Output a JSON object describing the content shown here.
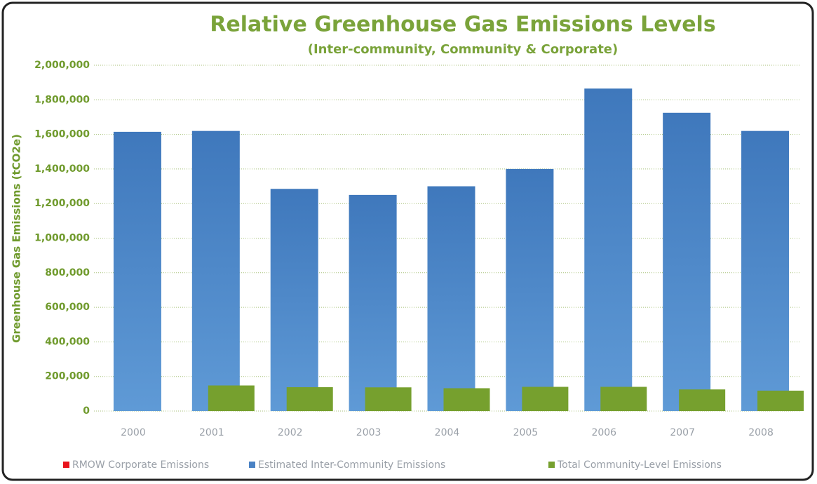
{
  "chart_data": {
    "type": "bar",
    "title": "Relative Greenhouse Gas Emissions Levels",
    "subtitle": "(Inter-community, Community & Corporate)",
    "y_label": "Greenhouse Gas Emissions (tCO2e)",
    "categories": [
      "2000",
      "2001",
      "2002",
      "2003",
      "2004",
      "2005",
      "2006",
      "2007",
      "2008"
    ],
    "series": [
      {
        "name": "RMOW Corporate Emissions",
        "color": "#e8141c",
        "values": [
          null,
          null,
          null,
          null,
          null,
          null,
          null,
          null,
          null
        ]
      },
      {
        "name": "Estimated Inter-Community Emissions",
        "color": "#4a82c4",
        "values": [
          1615000,
          1620000,
          1285000,
          1250000,
          1300000,
          1400000,
          1865000,
          1725000,
          1620000
        ]
      },
      {
        "name": "Total Community-Level Emissions",
        "color": "#76a02e",
        "values": [
          null,
          148000,
          138000,
          137000,
          132000,
          140000,
          140000,
          125000,
          118000
        ]
      }
    ],
    "ylim": [
      0,
      2000000
    ],
    "yticks": [
      0,
      {
        "value": 200000,
        "label": "200,000"
      },
      {
        "value": 400000,
        "label": "400,000"
      },
      {
        "value": 600000,
        "label": "600,000"
      },
      {
        "value": 800000,
        "label": "800,000"
      },
      {
        "value": 1000000,
        "label": "1,000,000"
      },
      {
        "value": 1200000,
        "label": "1,200,000"
      },
      {
        "value": 1400000,
        "label": "1,400,000"
      },
      {
        "value": 1600000,
        "label": "1,600,000"
      },
      {
        "value": 1800000,
        "label": "1,800,000"
      },
      {
        "value": 2000000,
        "label": "2,000,000"
      }
    ],
    "grid": true,
    "legend": "bottom"
  }
}
